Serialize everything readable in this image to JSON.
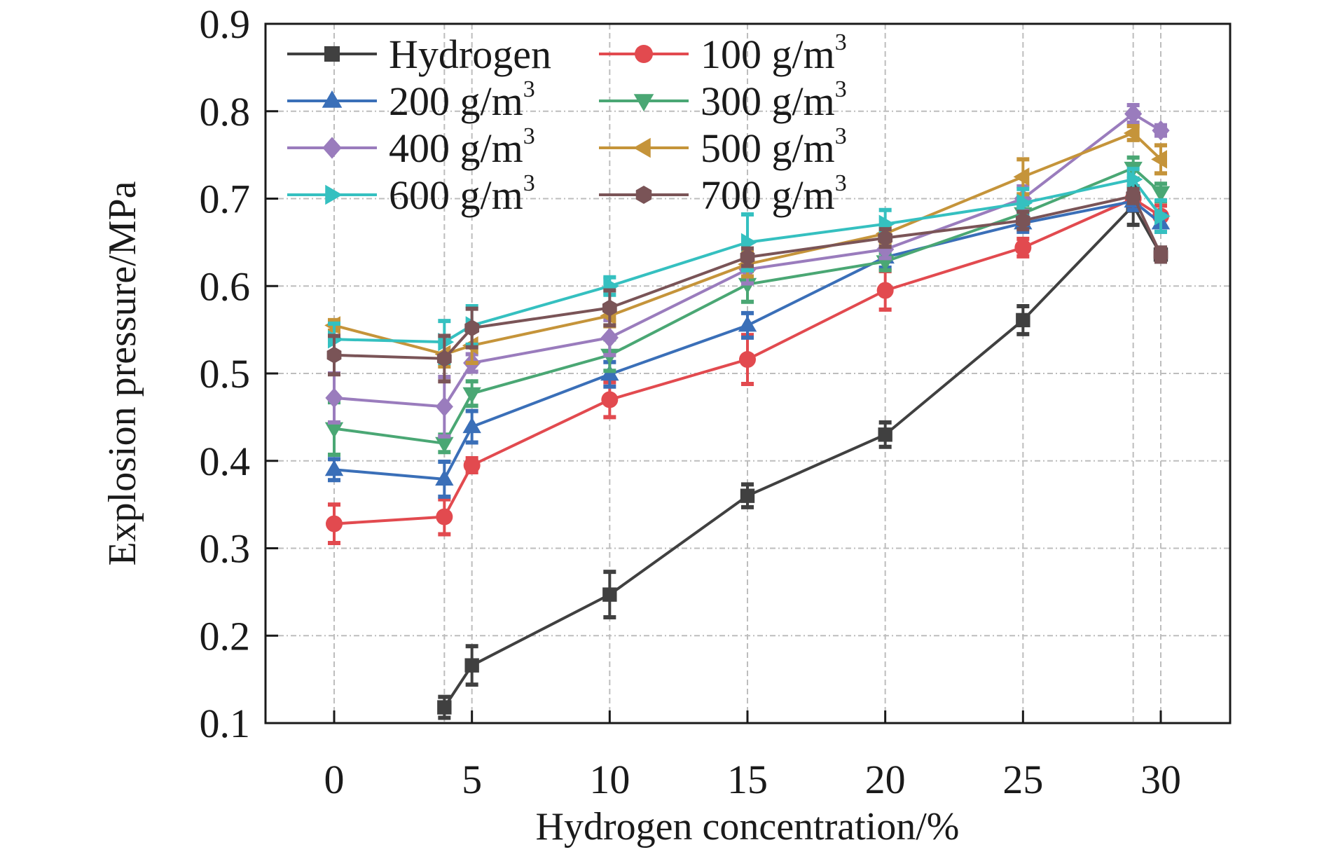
{
  "chart_data": {
    "type": "line",
    "title": "",
    "xlabel": "Hydrogen concentration/%",
    "ylabel": "Explosion pressure/MPa",
    "xlim": [
      -2.5,
      32.5
    ],
    "ylim": [
      0.1,
      0.9
    ],
    "x_ticks": [
      0,
      5,
      10,
      15,
      20,
      25,
      30
    ],
    "x_tick_labels": [
      "0",
      "5",
      "10",
      "15",
      "20",
      "25",
      "30"
    ],
    "y_ticks": [
      0.1,
      0.2,
      0.3,
      0.4,
      0.5,
      0.6,
      0.7,
      0.8,
      0.9
    ],
    "y_tick_labels": [
      "0.1",
      "0.2",
      "0.3",
      "0.4",
      "0.5",
      "0.6",
      "0.7",
      "0.8",
      "0.9"
    ],
    "x_gridlines": [
      0,
      4,
      5,
      10,
      15,
      20,
      25,
      29,
      30
    ],
    "grid": true,
    "legend_position": "top-left",
    "legend_columns": 2,
    "error_bars": true,
    "series": [
      {
        "name": "Hydrogen",
        "label_main": "Hydrogen",
        "label_sup": "",
        "color": "#404040",
        "marker": "square",
        "x": [
          4,
          5,
          10,
          15,
          20,
          25,
          29,
          30
        ],
        "values": [
          0.118,
          0.166,
          0.247,
          0.36,
          0.43,
          0.561,
          0.692,
          0.636
        ],
        "errors": [
          0.012,
          0.022,
          0.026,
          0.013,
          0.014,
          0.016,
          0.022,
          0.008
        ]
      },
      {
        "name": "100 g/m3",
        "label_main": "100 g/m",
        "label_sup": "3",
        "color": "#e24a4f",
        "marker": "circle",
        "x": [
          0,
          4,
          5,
          10,
          15,
          20,
          25,
          29,
          30
        ],
        "values": [
          0.328,
          0.336,
          0.395,
          0.47,
          0.516,
          0.595,
          0.644,
          0.7,
          0.68
        ],
        "errors": [
          0.022,
          0.02,
          0.008,
          0.02,
          0.028,
          0.022,
          0.01,
          0.008,
          0.012
        ]
      },
      {
        "name": "200 g/m3",
        "label_main": "200 g/m",
        "label_sup": "3",
        "color": "#3a6fb8",
        "marker": "triangle-up",
        "x": [
          0,
          4,
          5,
          10,
          15,
          20,
          25,
          29,
          30
        ],
        "values": [
          0.39,
          0.379,
          0.439,
          0.499,
          0.555,
          0.633,
          0.672,
          0.697,
          0.672
        ],
        "errors": [
          0.012,
          0.02,
          0.018,
          0.014,
          0.014,
          0.012,
          0.01,
          0.01,
          0.01
        ]
      },
      {
        "name": "300 g/m3",
        "label_main": "300 g/m",
        "label_sup": "3",
        "color": "#4aa774",
        "marker": "triangle-down",
        "x": [
          0,
          4,
          5,
          10,
          15,
          20,
          25,
          29,
          30
        ],
        "values": [
          0.437,
          0.42,
          0.477,
          0.521,
          0.602,
          0.628,
          0.683,
          0.735,
          0.707
        ],
        "errors": [
          0.03,
          0.01,
          0.014,
          0.018,
          0.02,
          0.01,
          0.01,
          0.012,
          0.01
        ]
      },
      {
        "name": "400 g/m3",
        "label_main": "400 g/m",
        "label_sup": "3",
        "color": "#9a7cbd",
        "marker": "diamond",
        "x": [
          0,
          4,
          5,
          10,
          15,
          20,
          25,
          29,
          30
        ],
        "values": [
          0.472,
          0.462,
          0.512,
          0.541,
          0.619,
          0.642,
          0.7,
          0.797,
          0.778
        ],
        "errors": [
          0.028,
          0.034,
          0.01,
          0.02,
          0.016,
          0.01,
          0.014,
          0.01,
          0.006
        ]
      },
      {
        "name": "500 g/m3",
        "label_main": "500 g/m",
        "label_sup": "3",
        "color": "#c5943a",
        "marker": "triangle-left",
        "x": [
          0,
          4,
          5,
          10,
          15,
          20,
          25,
          29,
          30
        ],
        "values": [
          0.555,
          0.522,
          0.532,
          0.566,
          0.625,
          0.66,
          0.725,
          0.775,
          0.745
        ],
        "errors": [
          0.006,
          0.014,
          0.02,
          0.012,
          0.014,
          0.01,
          0.02,
          0.008,
          0.016
        ]
      },
      {
        "name": "600 g/m3",
        "label_main": "600 g/m",
        "label_sup": "3",
        "color": "#35c0c0",
        "marker": "triangle-right",
        "x": [
          0,
          4,
          5,
          10,
          15,
          20,
          25,
          29,
          30
        ],
        "values": [
          0.539,
          0.536,
          0.555,
          0.6,
          0.65,
          0.671,
          0.695,
          0.722,
          0.68
        ],
        "errors": [
          0.018,
          0.024,
          0.022,
          0.01,
          0.032,
          0.016,
          0.016,
          0.012,
          0.018
        ]
      },
      {
        "name": "700 g/m3",
        "label_main": "700 g/m",
        "label_sup": "3",
        "color": "#7a5457",
        "marker": "hexagon",
        "x": [
          0,
          4,
          5,
          10,
          15,
          20,
          25,
          29,
          30
        ],
        "values": [
          0.521,
          0.517,
          0.552,
          0.575,
          0.633,
          0.655,
          0.675,
          0.703,
          0.636
        ],
        "errors": [
          0.022,
          0.026,
          0.022,
          0.02,
          0.01,
          0.01,
          0.01,
          0.008,
          0.008
        ]
      }
    ]
  }
}
